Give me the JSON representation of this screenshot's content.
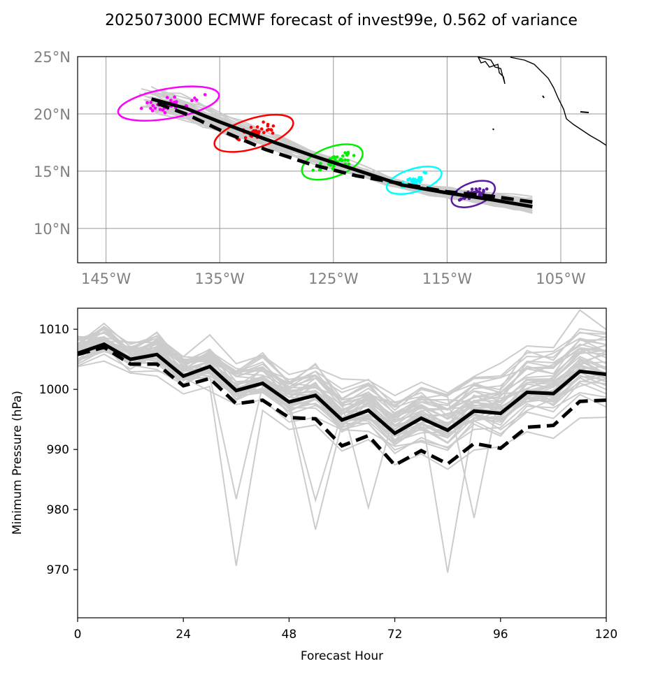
{
  "title": "2025073000 ECMWF forecast of invest99e, 0.562 of variance",
  "chart_data": [
    {
      "type": "map-tracks",
      "xlim": [
        -147.5,
        -101
      ],
      "ylim": [
        7,
        25
      ],
      "x_ticks": [
        -145,
        -135,
        -125,
        -115,
        -105
      ],
      "x_tick_labels": [
        "145°W",
        "135°W",
        "125°W",
        "115°W",
        "105°W"
      ],
      "y_ticks": [
        10,
        15,
        20,
        25
      ],
      "y_tick_labels": [
        "10°N",
        "15°N",
        "20°N",
        "25°N"
      ],
      "grid": true,
      "ensemble_color": "#cccccc",
      "mean_track": [
        [
          -107.5,
          11.9
        ],
        [
          -111,
          12.5
        ],
        [
          -115,
          13.1
        ],
        [
          -119,
          13.8
        ],
        [
          -123,
          15.1
        ],
        [
          -127,
          16.4
        ],
        [
          -131,
          17.8
        ],
        [
          -135,
          19.3
        ],
        [
          -138,
          20.5
        ],
        [
          -141,
          21.3
        ]
      ],
      "deterministic_track": [
        [
          -107.5,
          12.3
        ],
        [
          -111,
          12.8
        ],
        [
          -115,
          13.2
        ],
        [
          -119,
          13.9
        ],
        [
          -123,
          14.6
        ],
        [
          -127,
          15.6
        ],
        [
          -131,
          16.9
        ],
        [
          -135,
          18.6
        ],
        [
          -138,
          20
        ],
        [
          -141,
          21.1
        ]
      ],
      "ellipses": [
        {
          "color": "#ff00ff",
          "center": [
            -139.5,
            20.9
          ],
          "rx": 4.5,
          "ry": 1.3,
          "angle": -10
        },
        {
          "color": "#ff0000",
          "center": [
            -132,
            18.3
          ],
          "rx": 3.6,
          "ry": 1.3,
          "angle": -17
        },
        {
          "color": "#00ee00",
          "center": [
            -125.1,
            15.8
          ],
          "rx": 2.8,
          "ry": 1.3,
          "angle": -20
        },
        {
          "color": "#00ffff",
          "center": [
            -117.9,
            14.2
          ],
          "rx": 2.5,
          "ry": 1.0,
          "angle": -17
        },
        {
          "color": "#5b1aa0",
          "center": [
            -112.7,
            13.0
          ],
          "rx": 2.0,
          "ry": 1.0,
          "angle": -20
        }
      ]
    },
    {
      "type": "line",
      "xlabel": "Forecast Hour",
      "ylabel": "Minimum Pressure (hPa)",
      "xlim": [
        0,
        120
      ],
      "ylim": [
        962,
        1013.5
      ],
      "x_ticks": [
        0,
        24,
        48,
        72,
        96,
        120
      ],
      "y_ticks": [
        970,
        980,
        990,
        1000,
        1010
      ],
      "x": [
        0,
        6,
        12,
        18,
        24,
        30,
        36,
        42,
        48,
        54,
        60,
        66,
        72,
        78,
        84,
        90,
        96,
        102,
        108,
        114,
        120
      ],
      "series": [
        {
          "style": "solid",
          "color": "#000000",
          "values": [
            1006,
            1007.5,
            1005,
            1005.8,
            1002.2,
            1003.8,
            999.8,
            1001,
            997.9,
            999,
            994.9,
            996.5,
            992.7,
            995.2,
            993.2,
            996.4,
            996,
            999.5,
            999.3,
            1003,
            1002.5
          ]
        },
        {
          "style": "dashed",
          "color": "#000000",
          "values": [
            1005.8,
            1007,
            1004.2,
            1004.2,
            1000.6,
            1001.8,
            997.6,
            998.2,
            995.3,
            995.1,
            990.6,
            992.3,
            987.4,
            989.8,
            987.6,
            991,
            990.2,
            993.7,
            994,
            998,
            998.2
          ]
        }
      ],
      "ensemble_color": "#cccccc"
    }
  ]
}
